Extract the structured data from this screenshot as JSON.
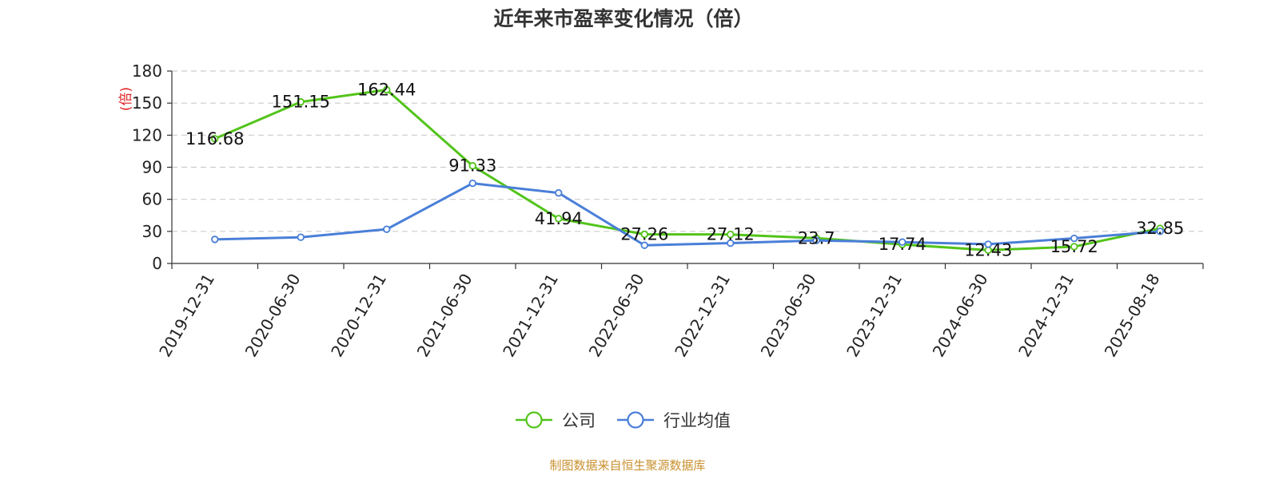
{
  "chart_data": {
    "type": "line",
    "title": "近年来市盈率变化情况（倍）",
    "ylabel": "(倍)",
    "ylim": [
      0,
      180
    ],
    "yticks": [
      0,
      30,
      60,
      90,
      120,
      150,
      180
    ],
    "grid": true,
    "categories": [
      "2019-12-31",
      "2020-06-30",
      "2020-12-31",
      "2021-06-30",
      "2021-12-31",
      "2022-06-30",
      "2022-12-31",
      "2023-06-30",
      "2023-12-31",
      "2024-06-30",
      "2024-12-31",
      "2025-08-18"
    ],
    "series": [
      {
        "name": "公司",
        "color": "#52c41a",
        "values": [
          116.68,
          151.15,
          162.44,
          91.33,
          41.94,
          27.26,
          27.12,
          23.7,
          17.74,
          12.43,
          15.72,
          32.85
        ],
        "labels": [
          "116.68",
          "151.15",
          "162.44",
          "91.33",
          "41.94",
          "27.26",
          "27.12",
          "23.7",
          "17.74",
          "12.43",
          "15.72",
          "32.85"
        ]
      },
      {
        "name": "行业均值",
        "color": "#4a7fd8",
        "values": [
          22.5,
          24.5,
          32,
          75,
          66,
          17,
          19,
          21.5,
          20,
          18,
          23.5,
          30
        ]
      }
    ],
    "legend_position": "bottom-center"
  },
  "source": "制图数据来自恒生聚源数据库"
}
